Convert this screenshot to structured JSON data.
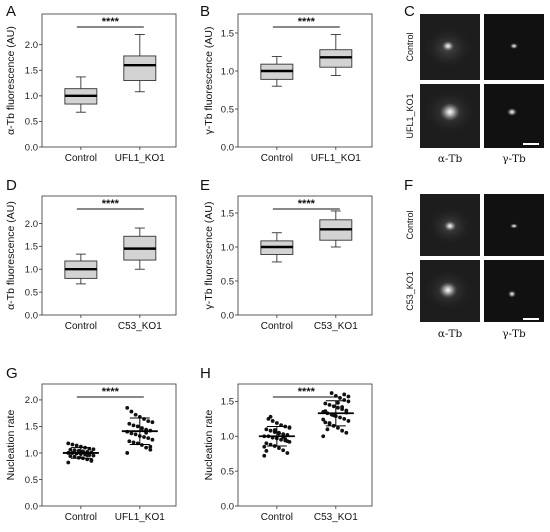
{
  "chart_data": [
    {
      "panel": "A",
      "type": "box",
      "ylabel": "α-Tb fluorescence (AU)",
      "categories": [
        "Control",
        "UFL1_KO1"
      ],
      "ylim": [
        0,
        2.6
      ],
      "yticks": [
        "0.0",
        "0.5",
        "1.0",
        "1.5",
        "2.0"
      ],
      "boxes": [
        {
          "min": 0.68,
          "q1": 0.84,
          "median": 1.0,
          "q3": 1.14,
          "max": 1.37
        },
        {
          "min": 1.08,
          "q1": 1.3,
          "median": 1.6,
          "q3": 1.78,
          "max": 2.2
        }
      ],
      "significance": "****"
    },
    {
      "panel": "B",
      "type": "box",
      "ylabel": "γ-Tb fluorescence (AU)",
      "categories": [
        "Control",
        "UFL1_KO1"
      ],
      "ylim": [
        0,
        1.75
      ],
      "yticks": [
        "0.0",
        "0.5",
        "1.0",
        "1.5"
      ],
      "boxes": [
        {
          "min": 0.8,
          "q1": 0.89,
          "median": 1.0,
          "q3": 1.09,
          "max": 1.19
        },
        {
          "min": 0.94,
          "q1": 1.05,
          "median": 1.18,
          "q3": 1.28,
          "max": 1.48
        }
      ],
      "significance": "****"
    },
    {
      "panel": "D",
      "type": "box",
      "ylabel": "α-Tb fluorescence (AU)",
      "categories": [
        "Control",
        "C53_KO1"
      ],
      "ylim": [
        0,
        2.6
      ],
      "yticks": [
        "0.0",
        "0.5",
        "1.0",
        "1.5",
        "2.0"
      ],
      "boxes": [
        {
          "min": 0.68,
          "q1": 0.8,
          "median": 1.0,
          "q3": 1.18,
          "max": 1.33
        },
        {
          "min": 1.0,
          "q1": 1.2,
          "median": 1.45,
          "q3": 1.72,
          "max": 1.9
        }
      ],
      "significance": "****"
    },
    {
      "panel": "E",
      "type": "box",
      "ylabel": "γ-Tb fluorescence (AU)",
      "categories": [
        "Control",
        "C53_KO1"
      ],
      "ylim": [
        0,
        1.75
      ],
      "yticks": [
        "0.0",
        "0.5",
        "1.0",
        "1.5"
      ],
      "boxes": [
        {
          "min": 0.78,
          "q1": 0.89,
          "median": 1.0,
          "q3": 1.09,
          "max": 1.21
        },
        {
          "min": 1.0,
          "q1": 1.1,
          "median": 1.26,
          "q3": 1.4,
          "max": 1.53
        }
      ],
      "significance": "****"
    },
    {
      "panel": "G",
      "type": "scatter",
      "ylabel": "Nucleation rate",
      "categories": [
        "Control",
        "UFL1_KO1"
      ],
      "ylim": [
        0,
        2.3
      ],
      "yticks": [
        "0.0",
        "0.5",
        "1.0",
        "1.5",
        "2.0"
      ],
      "groups": [
        {
          "mean": 1.0,
          "sd": 0.1,
          "values": [
            0.82,
            0.85,
            0.88,
            0.9,
            0.91,
            0.93,
            0.94,
            0.95,
            0.96,
            0.97,
            0.98,
            0.99,
            1.0,
            1.0,
            1.01,
            1.02,
            1.03,
            1.04,
            1.05,
            1.06,
            1.07,
            1.08,
            1.1,
            1.12,
            1.14,
            1.16,
            1.18,
            0.87,
            0.96,
            1.02
          ]
        },
        {
          "mean": 1.41,
          "sd": 0.25,
          "values": [
            1.0,
            1.06,
            1.1,
            1.15,
            1.18,
            1.2,
            1.22,
            1.25,
            1.28,
            1.3,
            1.32,
            1.35,
            1.37,
            1.4,
            1.42,
            1.44,
            1.47,
            1.5,
            1.52,
            1.55,
            1.58,
            1.6,
            1.64,
            1.68,
            1.72,
            1.78,
            1.85,
            1.12,
            1.38,
            1.46
          ]
        }
      ],
      "significance": "****"
    },
    {
      "panel": "H",
      "type": "scatter",
      "ylabel": "Nucleation rate",
      "categories": [
        "Control",
        "C53_KO1"
      ],
      "ylim": [
        0,
        1.75
      ],
      "yticks": [
        "0.0",
        "0.5",
        "1.0",
        "1.5"
      ],
      "groups": [
        {
          "mean": 1.0,
          "sd": 0.14,
          "values": [
            0.72,
            0.76,
            0.8,
            0.83,
            0.86,
            0.88,
            0.9,
            0.92,
            0.94,
            0.95,
            0.97,
            0.98,
            1.0,
            1.0,
            1.02,
            1.03,
            1.05,
            1.06,
            1.08,
            1.1,
            1.12,
            1.14,
            1.16,
            1.19,
            1.22,
            1.25,
            0.85,
            0.93,
            0.99,
            1.04,
            1.09,
            1.28,
            0.79,
            1.13,
            0.96
          ]
        },
        {
          "mean": 1.33,
          "sd": 0.18,
          "values": [
            1.0,
            1.05,
            1.08,
            1.12,
            1.15,
            1.18,
            1.2,
            1.22,
            1.25,
            1.27,
            1.29,
            1.31,
            1.33,
            1.35,
            1.37,
            1.39,
            1.41,
            1.43,
            1.45,
            1.47,
            1.5,
            1.52,
            1.55,
            1.58,
            1.62,
            1.1,
            1.24,
            1.34,
            1.42,
            1.48,
            1.3,
            1.19,
            1.36,
            1.57,
            1.6
          ]
        }
      ],
      "significance": "****"
    }
  ],
  "micrographs": [
    {
      "panel": "C",
      "rows": [
        "Control",
        "UFL1_KO1"
      ],
      "cols": [
        "α-Tb",
        "γ-Tb"
      ]
    },
    {
      "panel": "F",
      "rows": [
        "Control",
        "C53_KO1"
      ],
      "cols": [
        "α-Tb",
        "γ-Tb"
      ]
    }
  ]
}
